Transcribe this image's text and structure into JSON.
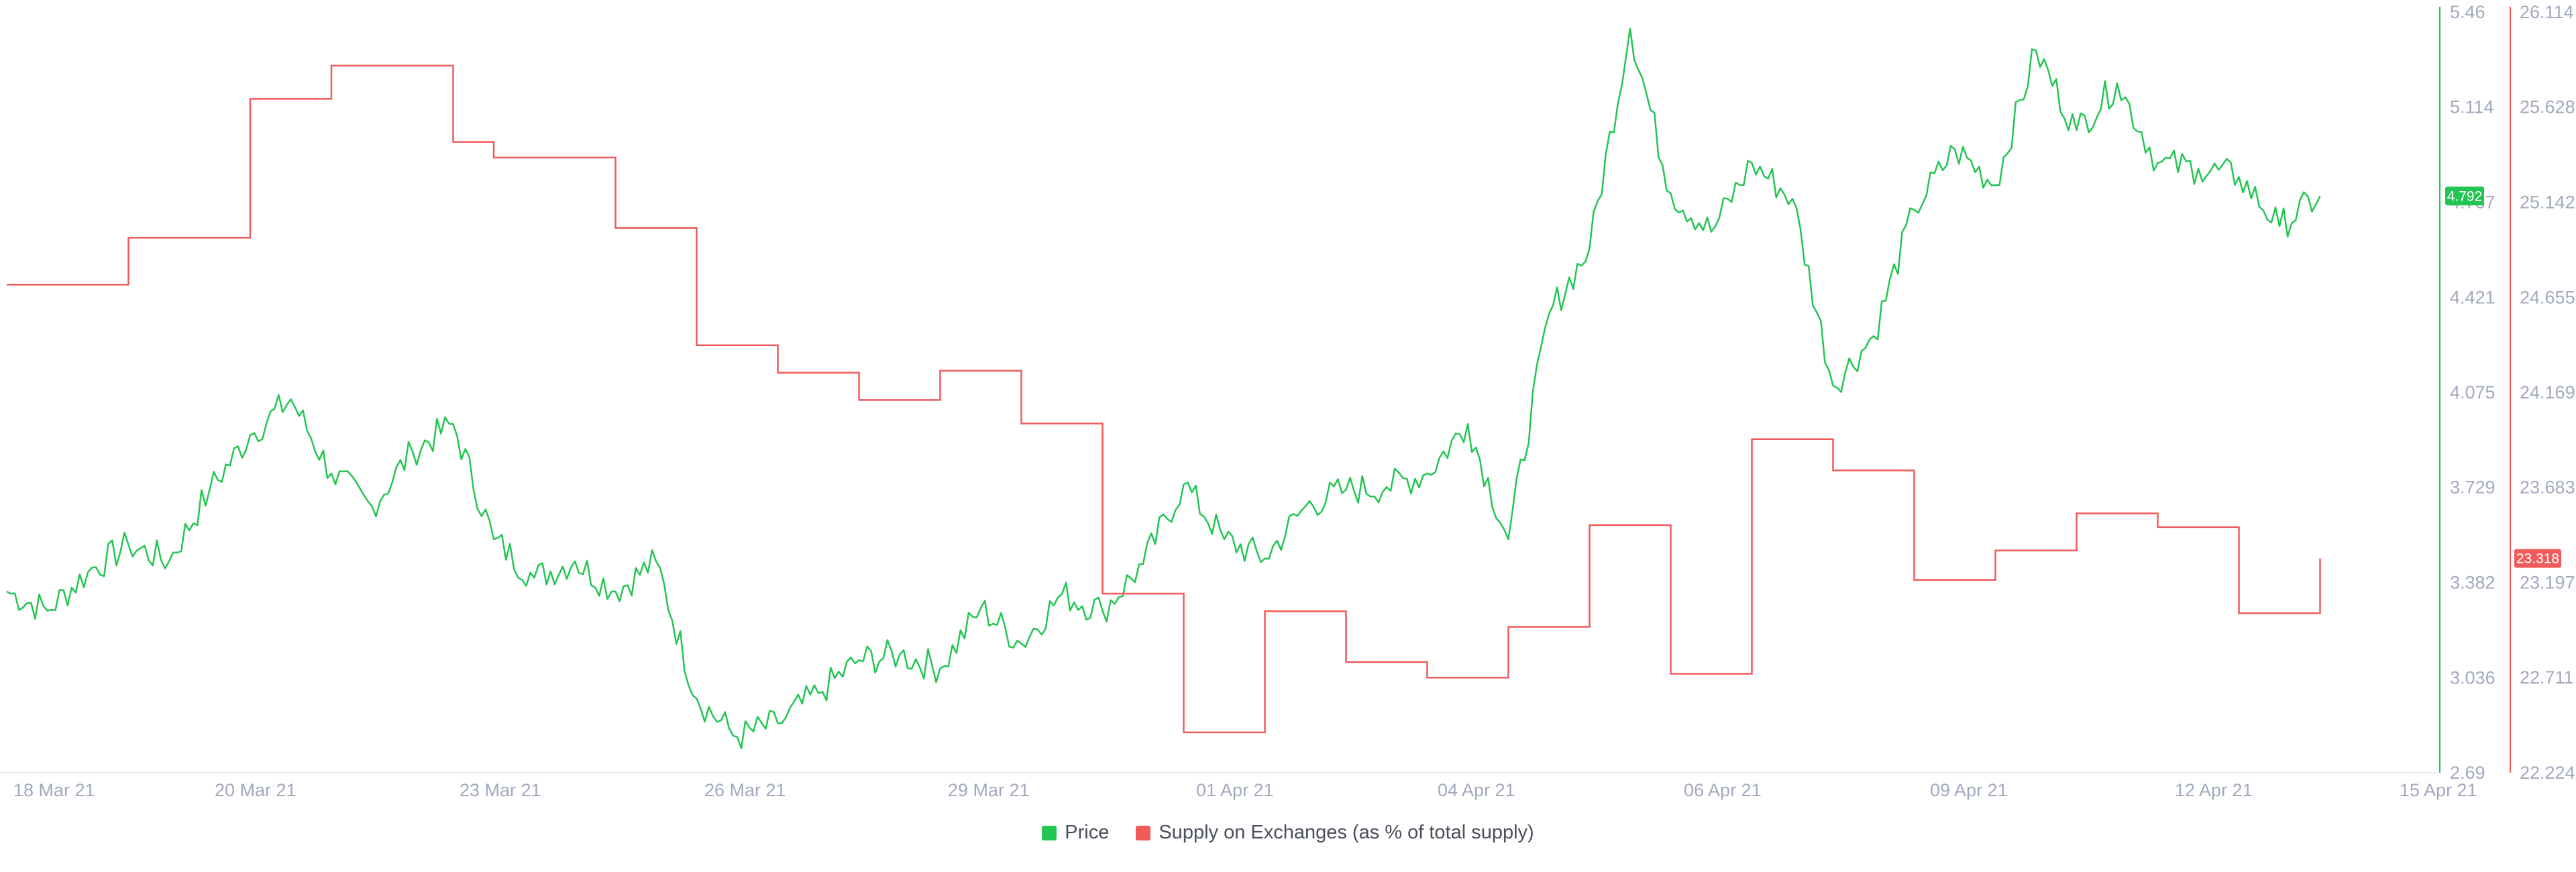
{
  "chart_data": {
    "type": "line",
    "x_ticks": [
      "18 Mar 21",
      "20 Mar 21",
      "23 Mar 21",
      "26 Mar 21",
      "29 Mar 21",
      "01 Apr 21",
      "04 Apr 21",
      "06 Apr 21",
      "09 Apr 21",
      "12 Apr 21",
      "15 Apr 21"
    ],
    "y_left_ticks": [
      "5.46",
      "5.114",
      "4.767",
      "4.421",
      "4.075",
      "3.729",
      "3.382",
      "3.036",
      "2.69"
    ],
    "y_right_ticks": [
      "26.114",
      "25.628",
      "25.142",
      "24.655",
      "24.169",
      "23.683",
      "23.197",
      "22.711",
      "22.224"
    ],
    "ylim_left": [
      2.69,
      5.46
    ],
    "ylim_right": [
      22.224,
      26.114
    ],
    "current_price_label": "4.792",
    "current_supply_label": "23.318",
    "colors": {
      "price": "#23c552",
      "supply": "#f05a5a"
    },
    "series": [
      {
        "name": "Price",
        "axis": "left",
        "x": [
          "2021-03-17",
          "2021-03-17 12:00",
          "2021-03-18",
          "2021-03-18 12:00",
          "2021-03-19",
          "2021-03-19 12:00",
          "2021-03-20",
          "2021-03-20 12:00",
          "2021-03-21",
          "2021-03-21 12:00",
          "2021-03-22",
          "2021-03-22 12:00",
          "2021-03-23",
          "2021-03-23 12:00",
          "2021-03-24",
          "2021-03-24 12:00",
          "2021-03-25",
          "2021-03-25 12:00",
          "2021-03-26",
          "2021-03-26 12:00",
          "2021-03-27",
          "2021-03-27 12:00",
          "2021-03-28",
          "2021-03-28 12:00",
          "2021-03-29",
          "2021-03-29 12:00",
          "2021-03-30",
          "2021-03-30 12:00",
          "2021-03-31",
          "2021-03-31 12:00",
          "2021-04-01",
          "2021-04-01 12:00",
          "2021-04-02",
          "2021-04-02 12:00",
          "2021-04-03",
          "2021-04-03 12:00",
          "2021-04-04",
          "2021-04-04 12:00",
          "2021-04-05",
          "2021-04-05 12:00",
          "2021-04-06",
          "2021-04-06 12:00",
          "2021-04-07",
          "2021-04-07 12:00",
          "2021-04-08",
          "2021-04-08 12:00",
          "2021-04-09",
          "2021-04-09 12:00",
          "2021-04-10",
          "2021-04-10 12:00",
          "2021-04-11",
          "2021-04-11 12:00",
          "2021-04-12",
          "2021-04-12 12:00",
          "2021-04-13",
          "2021-04-13 12:00",
          "2021-04-14",
          "2021-04-14 12:00"
        ],
        "values": [
          3.35,
          3.28,
          3.42,
          3.52,
          3.46,
          3.72,
          3.92,
          4.05,
          3.78,
          3.66,
          3.86,
          3.96,
          3.54,
          3.4,
          3.46,
          3.35,
          3.46,
          2.96,
          2.82,
          2.87,
          2.98,
          3.1,
          3.12,
          3.07,
          3.29,
          3.16,
          3.34,
          3.28,
          3.45,
          3.74,
          3.54,
          3.47,
          3.66,
          3.72,
          3.73,
          3.78,
          3.96,
          3.54,
          4.36,
          4.6,
          5.4,
          4.8,
          4.66,
          4.91,
          4.78,
          4.1,
          4.28,
          4.74,
          4.96,
          4.83,
          5.32,
          5.03,
          5.2,
          4.91,
          4.89,
          4.86,
          4.68,
          4.79
        ]
      },
      {
        "name": "Supply on Exchanges (as % of total supply)",
        "axis": "right",
        "x": [
          "2021-03-17",
          "2021-03-17 12:00",
          "2021-03-18",
          "2021-03-18 12:00",
          "2021-03-19",
          "2021-03-19 12:00",
          "2021-03-20",
          "2021-03-20 12:00",
          "2021-03-21",
          "2021-03-21 12:00",
          "2021-03-22",
          "2021-03-22 12:00",
          "2021-03-23",
          "2021-03-23 12:00",
          "2021-03-24",
          "2021-03-24 12:00",
          "2021-03-25",
          "2021-03-25 12:00",
          "2021-03-26",
          "2021-03-26 12:00",
          "2021-03-27",
          "2021-03-27 12:00",
          "2021-03-28",
          "2021-03-28 12:00",
          "2021-03-29",
          "2021-03-29 12:00",
          "2021-03-30",
          "2021-03-30 12:00",
          "2021-03-31",
          "2021-03-31 12:00",
          "2021-04-01",
          "2021-04-01 12:00",
          "2021-04-02",
          "2021-04-02 12:00",
          "2021-04-03",
          "2021-04-03 12:00",
          "2021-04-04",
          "2021-04-04 12:00",
          "2021-04-05",
          "2021-04-05 12:00",
          "2021-04-06",
          "2021-04-06 12:00",
          "2021-04-07",
          "2021-04-07 12:00",
          "2021-04-08",
          "2021-04-08 12:00",
          "2021-04-09",
          "2021-04-09 12:00",
          "2021-04-10",
          "2021-04-10 12:00",
          "2021-04-11",
          "2021-04-11 12:00",
          "2021-04-12",
          "2021-04-12 12:00",
          "2021-04-13",
          "2021-04-13 12:00",
          "2021-04-14",
          "2021-04-14 12:00"
        ],
        "values": [
          24.72,
          24.72,
          24.72,
          24.96,
          24.96,
          24.96,
          25.67,
          25.67,
          25.84,
          25.84,
          25.84,
          25.45,
          25.37,
          25.37,
          25.37,
          25.01,
          25.01,
          24.41,
          24.41,
          24.27,
          24.27,
          24.13,
          24.13,
          24.28,
          24.28,
          24.01,
          24.01,
          23.14,
          23.14,
          22.43,
          22.43,
          23.05,
          23.05,
          22.79,
          22.79,
          22.71,
          22.71,
          22.97,
          22.97,
          23.49,
          23.49,
          22.73,
          22.73,
          23.93,
          23.93,
          23.77,
          23.77,
          23.21,
          23.21,
          23.36,
          23.36,
          23.55,
          23.55,
          23.48,
          23.48,
          23.04,
          23.04,
          23.32
        ]
      }
    ]
  },
  "legend": {
    "price_label": "Price",
    "supply_label": "Supply on Exchanges (as % of total supply)"
  }
}
